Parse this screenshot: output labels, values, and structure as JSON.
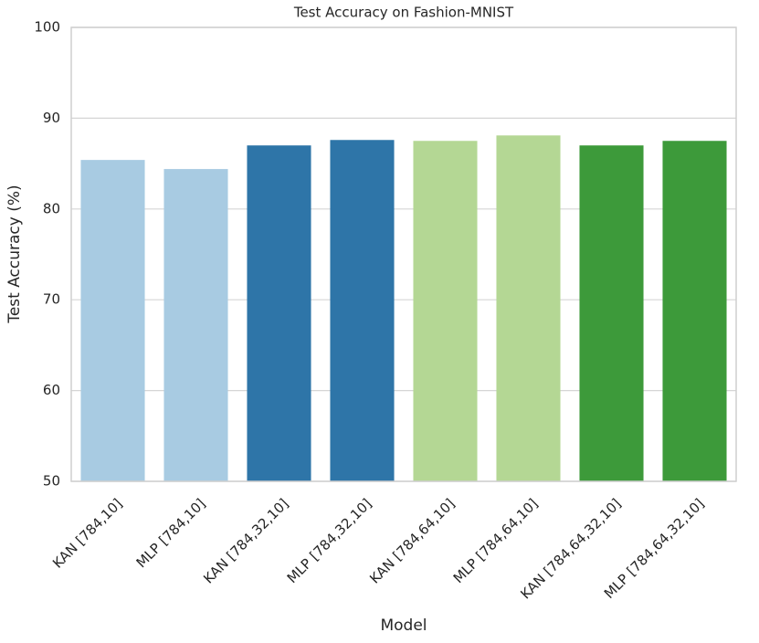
{
  "chart_data": {
    "type": "bar",
    "title": "Test Accuracy on Fashion-MNIST",
    "x_label": "Model",
    "y_label": "Test Accuracy (%)",
    "categories": [
      "KAN [784,10]",
      "MLP [784,10]",
      "KAN [784,32,10]",
      "MLP [784,32,10]",
      "KAN [784,64,10]",
      "MLP [784,64,10]",
      "KAN [784,64,32,10]",
      "MLP [784,64,32,10]"
    ],
    "values": [
      85.4,
      84.4,
      87.0,
      87.6,
      87.5,
      88.1,
      87.0,
      87.5
    ],
    "colors": [
      "#a8cbe2",
      "#a8cbe2",
      "#2e75a8",
      "#2e75a8",
      "#b4d794",
      "#b4d794",
      "#3d9a3a",
      "#3d9a3a"
    ],
    "ylim": [
      50,
      100
    ],
    "yticks": [
      50,
      60,
      70,
      80,
      90,
      100
    ],
    "grid": true
  }
}
